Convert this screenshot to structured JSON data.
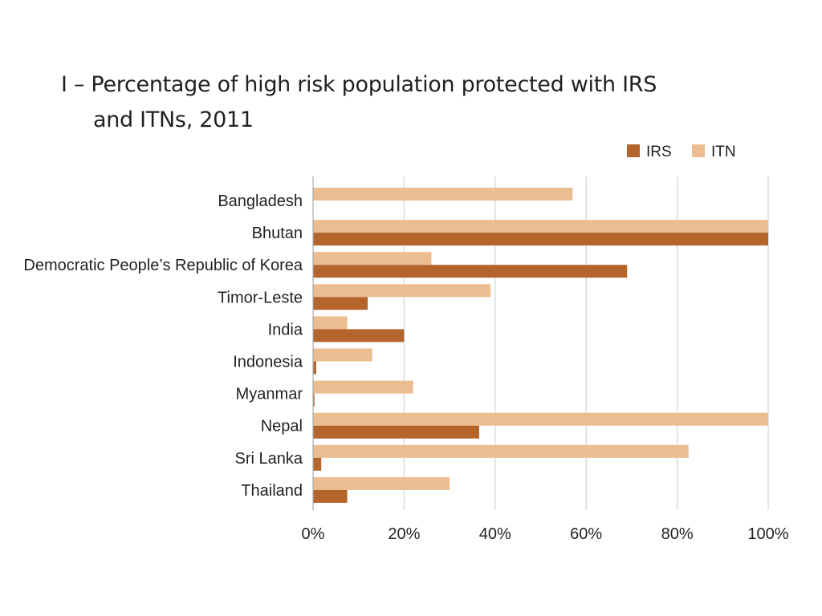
{
  "chart_data": {
    "type": "bar",
    "orientation": "horizontal",
    "title": "I – Percentage of high risk population protected with IRS and ITNs, 2011",
    "title_lines": [
      "I – Percentage of high risk population protected with IRS",
      "and ITNs, 2011"
    ],
    "categories": [
      "Bangladesh",
      "Bhutan",
      "Democratic People’s Republic of Korea",
      "Timor-Leste",
      "India",
      "Indonesia",
      "Myanmar",
      "Nepal",
      "Sri Lanka",
      "Thailand"
    ],
    "series": [
      {
        "name": "IRS",
        "color": "#b5642b",
        "values": [
          0,
          100,
          69,
          12,
          20,
          0.7,
          0.3,
          36.5,
          1.8,
          7.5
        ]
      },
      {
        "name": "ITN",
        "color": "#ecbd91",
        "values": [
          57,
          100,
          26,
          39,
          7.5,
          13,
          22,
          100,
          82.5,
          30
        ]
      }
    ],
    "xlim": [
      0,
      100
    ],
    "xticks": [
      0,
      20,
      40,
      60,
      80,
      100
    ],
    "xtick_labels": [
      "0%",
      "20%",
      "40%",
      "60%",
      "80%",
      "100%"
    ],
    "xlabel": "",
    "ylabel": "",
    "grid": "vertical",
    "legend": "top-right"
  }
}
